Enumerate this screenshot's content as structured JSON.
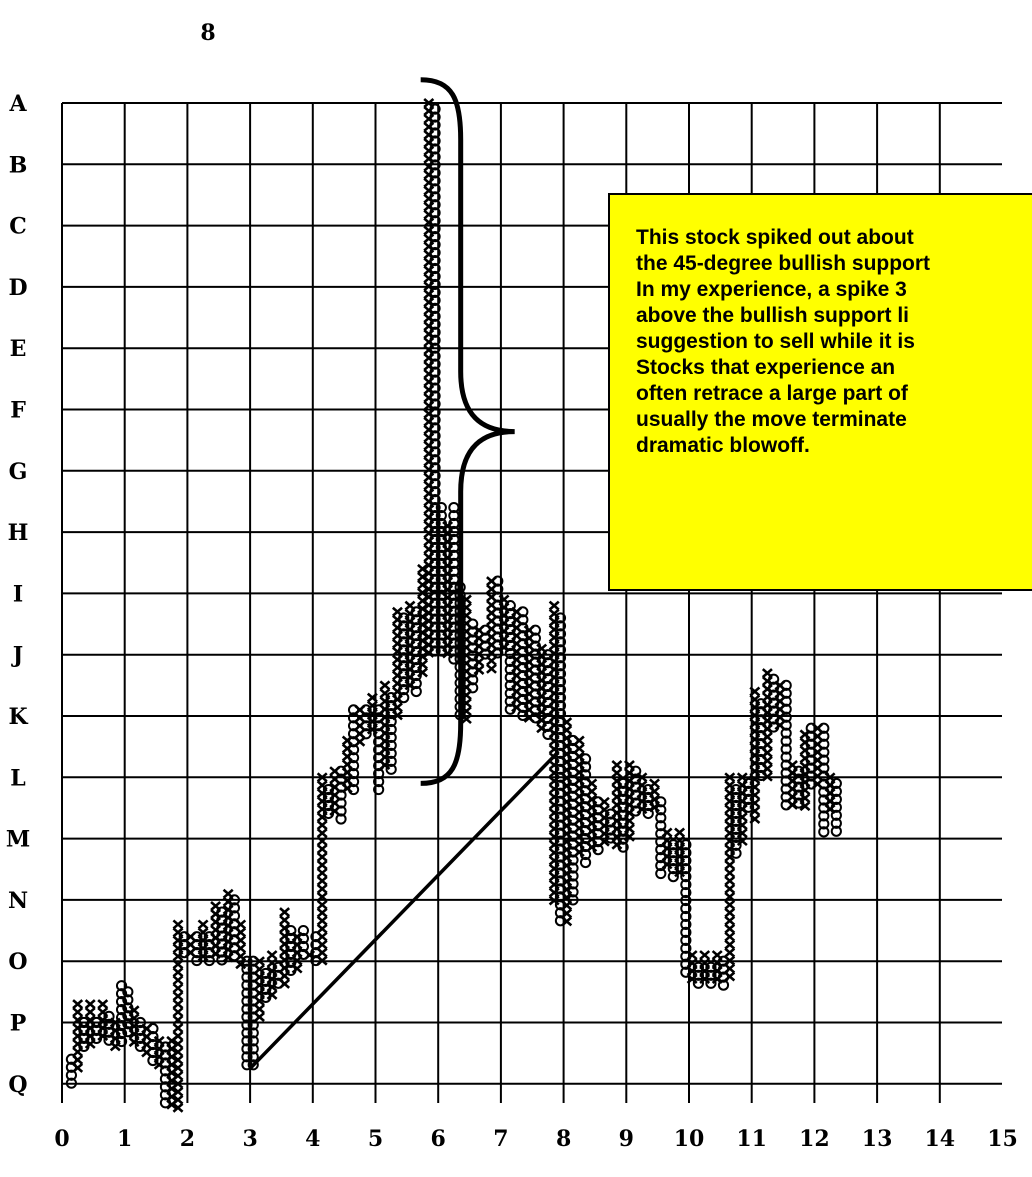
{
  "chart_data": {
    "type": "point-and-figure",
    "title": "8",
    "x_ticks": [
      "0",
      "1",
      "2",
      "3",
      "4",
      "5",
      "6",
      "7",
      "8",
      "9",
      "10",
      "11",
      "12",
      "13",
      "14",
      "15"
    ],
    "y_ticks": [
      "A",
      "B",
      "C",
      "D",
      "E",
      "F",
      "G",
      "H",
      "I",
      "J",
      "K",
      "L",
      "M",
      "N",
      "O",
      "P",
      "Q"
    ],
    "grid": true,
    "columns": [
      {
        "x": 0.15,
        "mark": "O",
        "from": 15.6,
        "to": 16.1
      },
      {
        "x": 0.25,
        "mark": "X",
        "from": 14.7,
        "to": 15.8
      },
      {
        "x": 0.35,
        "mark": "O",
        "from": 15.0,
        "to": 15.4
      },
      {
        "x": 0.45,
        "mark": "X",
        "from": 14.7,
        "to": 15.4
      },
      {
        "x": 0.55,
        "mark": "O",
        "from": 15.0,
        "to": 15.3
      },
      {
        "x": 0.65,
        "mark": "X",
        "from": 14.7,
        "to": 15.3
      },
      {
        "x": 0.75,
        "mark": "O",
        "from": 14.9,
        "to": 15.4
      },
      {
        "x": 0.85,
        "mark": "X",
        "from": 15.0,
        "to": 15.4
      },
      {
        "x": 0.95,
        "mark": "O",
        "from": 14.4,
        "to": 15.4
      },
      {
        "x": 1.05,
        "mark": "O",
        "from": 14.5,
        "to": 15.2
      },
      {
        "x": 1.15,
        "mark": "X",
        "from": 14.8,
        "to": 15.4
      },
      {
        "x": 1.25,
        "mark": "O",
        "from": 15.0,
        "to": 15.5
      },
      {
        "x": 1.35,
        "mark": "X",
        "from": 15.1,
        "to": 15.6
      },
      {
        "x": 1.45,
        "mark": "O",
        "from": 15.1,
        "to": 15.7
      },
      {
        "x": 1.55,
        "mark": "X",
        "from": 15.3,
        "to": 15.8
      },
      {
        "x": 1.65,
        "mark": "O",
        "from": 15.4,
        "to": 16.4
      },
      {
        "x": 1.75,
        "mark": "X",
        "from": 15.3,
        "to": 16.4
      },
      {
        "x": 1.85,
        "mark": "X",
        "from": 13.4,
        "to": 16.4
      },
      {
        "x": 1.95,
        "mark": "O",
        "from": 13.6,
        "to": 13.9
      },
      {
        "x": 2.05,
        "mark": "X",
        "from": 13.6,
        "to": 13.9
      },
      {
        "x": 2.15,
        "mark": "O",
        "from": 13.6,
        "to": 14.0
      },
      {
        "x": 2.25,
        "mark": "X",
        "from": 13.4,
        "to": 14.0
      },
      {
        "x": 2.35,
        "mark": "O",
        "from": 13.6,
        "to": 14.0
      },
      {
        "x": 2.45,
        "mark": "X",
        "from": 13.1,
        "to": 13.9
      },
      {
        "x": 2.55,
        "mark": "O",
        "from": 13.2,
        "to": 14.0
      },
      {
        "x": 2.65,
        "mark": "X",
        "from": 12.9,
        "to": 14.0
      },
      {
        "x": 2.75,
        "mark": "O",
        "from": 13.0,
        "to": 14.0
      },
      {
        "x": 2.85,
        "mark": "X",
        "from": 13.4,
        "to": 14.1
      },
      {
        "x": 2.95,
        "mark": "O",
        "from": 14.0,
        "to": 15.7
      },
      {
        "x": 3.05,
        "mark": "O",
        "from": 14.0,
        "to": 15.7
      },
      {
        "x": 3.15,
        "mark": "X",
        "from": 14.0,
        "to": 15.0
      },
      {
        "x": 3.25,
        "mark": "O",
        "from": 14.2,
        "to": 14.7
      },
      {
        "x": 3.35,
        "mark": "X",
        "from": 13.9,
        "to": 14.6
      },
      {
        "x": 3.45,
        "mark": "O",
        "from": 14.1,
        "to": 14.4
      },
      {
        "x": 3.55,
        "mark": "X",
        "from": 13.2,
        "to": 14.4
      },
      {
        "x": 3.65,
        "mark": "O",
        "from": 13.5,
        "to": 14.2
      },
      {
        "x": 3.75,
        "mark": "X",
        "from": 13.6,
        "to": 14.2
      },
      {
        "x": 3.85,
        "mark": "O",
        "from": 13.5,
        "to": 14.0
      },
      {
        "x": 3.95,
        "mark": "X",
        "from": 13.9,
        "to": 14.0
      },
      {
        "x": 4.05,
        "mark": "O",
        "from": 13.6,
        "to": 14.0
      },
      {
        "x": 4.15,
        "mark": "X",
        "from": 11.0,
        "to": 14.0
      },
      {
        "x": 4.25,
        "mark": "O",
        "from": 11.2,
        "to": 11.6
      },
      {
        "x": 4.35,
        "mark": "X",
        "from": 10.9,
        "to": 11.6
      },
      {
        "x": 4.45,
        "mark": "O",
        "from": 10.9,
        "to": 11.7
      },
      {
        "x": 4.55,
        "mark": "X",
        "from": 10.4,
        "to": 11.3
      },
      {
        "x": 4.65,
        "mark": "O",
        "from": 9.9,
        "to": 11.2
      },
      {
        "x": 4.75,
        "mark": "X",
        "from": 9.9,
        "to": 10.5
      },
      {
        "x": 4.85,
        "mark": "O",
        "from": 9.9,
        "to": 10.3
      },
      {
        "x": 4.95,
        "mark": "X",
        "from": 9.7,
        "to": 10.3
      },
      {
        "x": 5.05,
        "mark": "O",
        "from": 9.9,
        "to": 11.2
      },
      {
        "x": 5.15,
        "mark": "X",
        "from": 9.5,
        "to": 10.8
      },
      {
        "x": 5.25,
        "mark": "O",
        "from": 9.7,
        "to": 10.9
      },
      {
        "x": 5.35,
        "mark": "X",
        "from": 8.3,
        "to": 10.1
      },
      {
        "x": 5.45,
        "mark": "O",
        "from": 8.4,
        "to": 9.7
      },
      {
        "x": 5.55,
        "mark": "X",
        "from": 8.2,
        "to": 9.6
      },
      {
        "x": 5.65,
        "mark": "O",
        "from": 8.3,
        "to": 9.6
      },
      {
        "x": 5.75,
        "mark": "X",
        "from": 7.6,
        "to": 9.4
      },
      {
        "x": 5.85,
        "mark": "X",
        "from": 0.0,
        "to": 9.0
      },
      {
        "x": 5.95,
        "mark": "O",
        "from": 0.1,
        "to": 9.0
      },
      {
        "x": 6.05,
        "mark": "O",
        "from": 6.6,
        "to": 9.0
      },
      {
        "x": 6.15,
        "mark": "X",
        "from": 6.9,
        "to": 9.0
      },
      {
        "x": 6.25,
        "mark": "O",
        "from": 6.6,
        "to": 9.1
      },
      {
        "x": 6.35,
        "mark": "O",
        "from": 7.9,
        "to": 10.1
      },
      {
        "x": 6.45,
        "mark": "X",
        "from": 8.1,
        "to": 10.1
      },
      {
        "x": 6.55,
        "mark": "O",
        "from": 8.5,
        "to": 9.6
      },
      {
        "x": 6.65,
        "mark": "X",
        "from": 8.6,
        "to": 9.3
      },
      {
        "x": 6.75,
        "mark": "O",
        "from": 8.6,
        "to": 9.0
      },
      {
        "x": 6.85,
        "mark": "X",
        "from": 7.8,
        "to": 9.3
      },
      {
        "x": 6.95,
        "mark": "O",
        "from": 7.8,
        "to": 9.0
      },
      {
        "x": 7.05,
        "mark": "X",
        "from": 8.1,
        "to": 9.0
      },
      {
        "x": 7.15,
        "mark": "O",
        "from": 8.2,
        "to": 10.0
      },
      {
        "x": 7.25,
        "mark": "X",
        "from": 8.3,
        "to": 9.9
      },
      {
        "x": 7.35,
        "mark": "O",
        "from": 8.3,
        "to": 10.1
      },
      {
        "x": 7.45,
        "mark": "X",
        "from": 8.6,
        "to": 10.1
      },
      {
        "x": 7.55,
        "mark": "O",
        "from": 8.6,
        "to": 10.1
      },
      {
        "x": 7.65,
        "mark": "X",
        "from": 8.9,
        "to": 10.2
      },
      {
        "x": 7.75,
        "mark": "O",
        "from": 9.0,
        "to": 10.3
      },
      {
        "x": 7.85,
        "mark": "X",
        "from": 8.2,
        "to": 13.1
      },
      {
        "x": 7.95,
        "mark": "O",
        "from": 8.4,
        "to": 13.4
      },
      {
        "x": 8.05,
        "mark": "X",
        "from": 10.1,
        "to": 13.4
      },
      {
        "x": 8.15,
        "mark": "O",
        "from": 10.4,
        "to": 13.0
      },
      {
        "x": 8.25,
        "mark": "X",
        "from": 10.4,
        "to": 12.3
      },
      {
        "x": 8.35,
        "mark": "O",
        "from": 10.7,
        "to": 12.4
      },
      {
        "x": 8.45,
        "mark": "X",
        "from": 11.1,
        "to": 12.2
      },
      {
        "x": 8.55,
        "mark": "O",
        "from": 11.4,
        "to": 12.2
      },
      {
        "x": 8.65,
        "mark": "X",
        "from": 11.4,
        "to": 12.1
      },
      {
        "x": 8.75,
        "mark": "O",
        "from": 11.6,
        "to": 12.1
      },
      {
        "x": 8.85,
        "mark": "X",
        "from": 10.8,
        "to": 12.1
      },
      {
        "x": 8.95,
        "mark": "O",
        "from": 11.1,
        "to": 12.2
      },
      {
        "x": 9.05,
        "mark": "X",
        "from": 10.8,
        "to": 12.0
      },
      {
        "x": 9.15,
        "mark": "O",
        "from": 10.9,
        "to": 11.6
      },
      {
        "x": 9.25,
        "mark": "X",
        "from": 11.0,
        "to": 11.6
      },
      {
        "x": 9.35,
        "mark": "O",
        "from": 11.2,
        "to": 11.6
      },
      {
        "x": 9.45,
        "mark": "X",
        "from": 11.1,
        "to": 11.6
      },
      {
        "x": 9.55,
        "mark": "O",
        "from": 11.4,
        "to": 12.6
      },
      {
        "x": 9.65,
        "mark": "X",
        "from": 11.9,
        "to": 12.5
      },
      {
        "x": 9.75,
        "mark": "O",
        "from": 12.1,
        "to": 12.7
      },
      {
        "x": 9.85,
        "mark": "X",
        "from": 11.9,
        "to": 12.6
      },
      {
        "x": 9.95,
        "mark": "O",
        "from": 12.1,
        "to": 14.3
      },
      {
        "x": 10.05,
        "mark": "X",
        "from": 13.9,
        "to": 14.3
      },
      {
        "x": 10.15,
        "mark": "O",
        "from": 14.1,
        "to": 14.4
      },
      {
        "x": 10.25,
        "mark": "X",
        "from": 13.9,
        "to": 14.4
      },
      {
        "x": 10.35,
        "mark": "O",
        "from": 14.1,
        "to": 14.4
      },
      {
        "x": 10.45,
        "mark": "X",
        "from": 13.9,
        "to": 14.3
      },
      {
        "x": 10.55,
        "mark": "O",
        "from": 14.0,
        "to": 14.4
      },
      {
        "x": 10.65,
        "mark": "X",
        "from": 11.0,
        "to": 14.3
      },
      {
        "x": 10.75,
        "mark": "O",
        "from": 11.2,
        "to": 12.3
      },
      {
        "x": 10.85,
        "mark": "X",
        "from": 11.0,
        "to": 12.1
      },
      {
        "x": 10.95,
        "mark": "O",
        "from": 11.1,
        "to": 11.6
      },
      {
        "x": 11.05,
        "mark": "X",
        "from": 9.6,
        "to": 11.8
      },
      {
        "x": 11.15,
        "mark": "O",
        "from": 9.8,
        "to": 11.0
      },
      {
        "x": 11.25,
        "mark": "X",
        "from": 9.3,
        "to": 11.0
      },
      {
        "x": 11.35,
        "mark": "O",
        "from": 9.4,
        "to": 10.2
      },
      {
        "x": 11.45,
        "mark": "X",
        "from": 9.5,
        "to": 10.2
      },
      {
        "x": 11.55,
        "mark": "O",
        "from": 9.5,
        "to": 11.5
      },
      {
        "x": 11.65,
        "mark": "X",
        "from": 10.8,
        "to": 11.5
      },
      {
        "x": 11.75,
        "mark": "O",
        "from": 10.9,
        "to": 11.5
      },
      {
        "x": 11.85,
        "mark": "X",
        "from": 10.3,
        "to": 11.5
      },
      {
        "x": 11.95,
        "mark": "O",
        "from": 10.2,
        "to": 11.2
      },
      {
        "x": 12.05,
        "mark": "X",
        "from": 10.2,
        "to": 11.2
      },
      {
        "x": 12.15,
        "mark": "O",
        "from": 10.2,
        "to": 11.9
      },
      {
        "x": 12.25,
        "mark": "X",
        "from": 11.0,
        "to": 11.6
      },
      {
        "x": 12.35,
        "mark": "O",
        "from": 11.1,
        "to": 12.0
      }
    ],
    "trendline": {
      "from": [
        3.0,
        15.75
      ],
      "to": [
        7.9,
        10.6
      ]
    },
    "bracket": {
      "x": 6.55,
      "top": -0.38,
      "bottom": 11.1
    },
    "annotation": {
      "lines": [
        "This stock spiked out about",
        "the 45-degree bullish support",
        "In my experience, a spike 3",
        "above the bullish support li",
        "suggestion to sell while it is",
        "Stocks that experience an",
        "often retrace a large part of",
        "usually the move terminate",
        "dramatic blowoff."
      ],
      "background": "#ffff00"
    },
    "colors": {
      "ink": "#000000",
      "note": "#ffff00"
    }
  }
}
